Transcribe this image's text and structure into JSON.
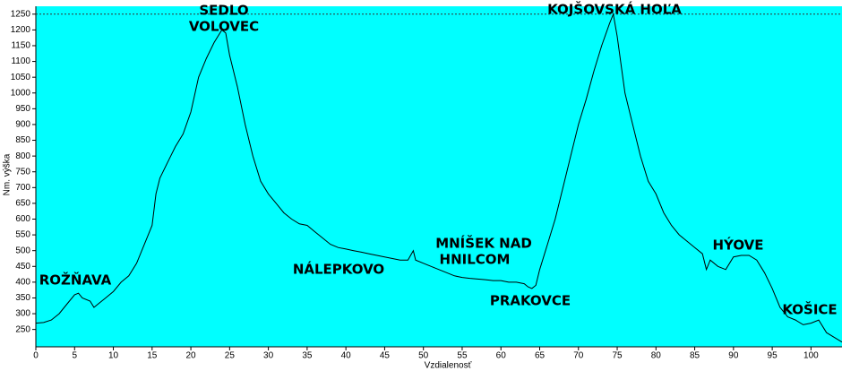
{
  "chart_data": {
    "type": "line",
    "x_label": "Vzdialenosť",
    "y_label": "Nm. výška",
    "x": [
      0,
      1,
      2,
      3,
      4,
      5,
      5.5,
      6,
      7,
      7.5,
      8,
      9,
      10,
      11,
      12,
      13,
      14,
      15,
      15.5,
      16,
      17,
      18,
      19,
      20,
      21,
      22,
      23,
      24,
      24.5,
      25,
      26,
      27,
      28,
      29,
      30,
      31,
      32,
      33,
      34,
      35,
      36,
      37,
      38,
      39,
      40,
      41,
      42,
      43,
      44,
      45,
      46,
      47,
      48,
      48.7,
      49,
      50,
      51,
      52,
      53,
      54,
      55,
      56,
      57,
      58,
      59,
      60,
      61,
      62,
      63,
      63.5,
      64,
      64.5,
      65,
      66,
      67,
      68,
      69,
      70,
      71,
      72,
      73,
      74,
      74.5,
      75,
      76,
      77,
      78,
      79,
      80,
      81,
      82,
      83,
      84,
      85,
      86,
      86.5,
      87,
      88,
      89,
      90,
      91,
      92,
      93,
      94,
      95,
      96,
      97,
      98,
      99,
      100,
      101,
      102,
      103,
      104
    ],
    "y": [
      270,
      272,
      280,
      300,
      330,
      360,
      365,
      350,
      340,
      320,
      330,
      350,
      370,
      400,
      420,
      460,
      520,
      580,
      680,
      730,
      780,
      830,
      870,
      940,
      1050,
      1110,
      1160,
      1200,
      1190,
      1120,
      1020,
      900,
      800,
      720,
      680,
      650,
      620,
      600,
      585,
      580,
      560,
      540,
      520,
      510,
      505,
      500,
      495,
      490,
      485,
      480,
      475,
      470,
      470,
      500,
      470,
      460,
      450,
      440,
      430,
      420,
      415,
      412,
      410,
      408,
      405,
      405,
      400,
      400,
      395,
      385,
      380,
      390,
      440,
      520,
      600,
      700,
      800,
      900,
      980,
      1070,
      1150,
      1220,
      1250,
      1180,
      1000,
      900,
      800,
      720,
      680,
      620,
      580,
      550,
      530,
      510,
      490,
      440,
      470,
      450,
      440,
      480,
      485,
      485,
      470,
      430,
      380,
      320,
      290,
      280,
      265,
      270,
      280,
      240,
      225,
      210
    ],
    "color": "#000000",
    "background": "#00ffff",
    "reference_line": 1250,
    "xlim": [
      0,
      104
    ],
    "ylim": [
      195,
      1275
    ],
    "xticks": [
      0,
      5,
      10,
      15,
      20,
      25,
      30,
      35,
      40,
      45,
      50,
      55,
      60,
      65,
      70,
      75,
      80,
      85,
      90,
      95,
      100
    ],
    "yticks": [
      250,
      300,
      350,
      400,
      450,
      500,
      550,
      600,
      650,
      700,
      750,
      800,
      850,
      900,
      950,
      1000,
      1050,
      1100,
      1150,
      1200,
      1250
    ],
    "annotations": [
      [
        "SEDLO",
        "VOLOVEC"
      ],
      [
        "KOJŠOVSKÁ HOĽA"
      ],
      [
        "MNÍŠEK NAD",
        "HNILCOM"
      ],
      [
        "NÁLEPKOVO"
      ],
      [
        "PRAKOVCE"
      ],
      [
        "ROŽŇAVA"
      ],
      [
        "HÝOVE"
      ],
      [
        "KOŠICE"
      ]
    ]
  }
}
